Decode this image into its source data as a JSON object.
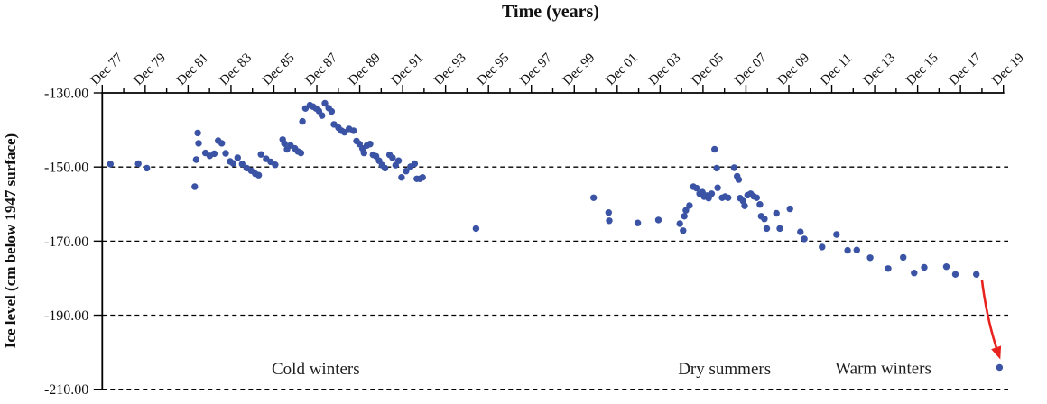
{
  "chart_data": {
    "type": "scatter",
    "title": "Time (years)",
    "xlabel": "Time (years)",
    "ylabel": "Ice level (cm below 1947 surface)",
    "x_unit": "years since Dec 1977",
    "xlim": [
      0,
      42
    ],
    "ylim": [
      -210,
      -130
    ],
    "grid": "horizontal dashed lines at -150, -170, -190, -210",
    "legend": "none",
    "x_axis": {
      "position": "top",
      "tick_labels": [
        "Dec 77",
        "Dec 79",
        "Dec 81",
        "Dec 83",
        "Dec 85",
        "Dec 87",
        "Dec 89",
        "Dec 91",
        "Dec 93",
        "Dec 95",
        "Dec 97",
        "Dec 99",
        "Dec 01",
        "Dec 03",
        "Dec 05",
        "Dec 07",
        "Dec 09",
        "Dec 11",
        "Dec 13",
        "Dec 15",
        "Dec 17",
        "Dec 19"
      ],
      "major_tick_years": [
        0,
        2,
        4,
        6,
        8,
        10,
        12,
        14,
        16,
        18,
        20,
        22,
        24,
        26,
        28,
        30,
        32,
        34,
        36,
        38,
        40,
        42
      ],
      "minor_tick_step": 1,
      "label_rotation_deg": -45
    },
    "y_axis": {
      "tick_labels": [
        "-130.00",
        "-150.00",
        "-170.00",
        "-190.00",
        "-210.00"
      ],
      "tick_values": [
        -130,
        -150,
        -170,
        -190,
        -210
      ]
    },
    "series": [
      {
        "name": "ice-level",
        "color": "#3a53a4",
        "marker": "circle",
        "points": [
          [
            0.38,
            -149.2
          ],
          [
            1.68,
            -149.1
          ],
          [
            2.08,
            -150.3
          ],
          [
            4.31,
            -155.3
          ],
          [
            4.38,
            -148.0
          ],
          [
            4.45,
            -140.8
          ],
          [
            4.49,
            -143.6
          ],
          [
            4.81,
            -146.2
          ],
          [
            5.01,
            -147.0
          ],
          [
            5.22,
            -146.4
          ],
          [
            5.4,
            -142.9
          ],
          [
            5.57,
            -143.6
          ],
          [
            5.75,
            -146.3
          ],
          [
            5.96,
            -148.5
          ],
          [
            6.1,
            -149.0
          ],
          [
            6.31,
            -147.5
          ],
          [
            6.52,
            -149.2
          ],
          [
            6.73,
            -150.3
          ],
          [
            6.94,
            -151.0
          ],
          [
            7.13,
            -151.8
          ],
          [
            7.29,
            -152.2
          ],
          [
            7.4,
            -146.6
          ],
          [
            7.64,
            -147.8
          ],
          [
            7.85,
            -148.6
          ],
          [
            8.06,
            -149.4
          ],
          [
            8.41,
            -142.6
          ],
          [
            8.49,
            -143.7
          ],
          [
            8.61,
            -145.2
          ],
          [
            8.77,
            -144.2
          ],
          [
            8.98,
            -145.0
          ],
          [
            9.12,
            -145.8
          ],
          [
            9.26,
            -146.2
          ],
          [
            9.33,
            -137.7
          ],
          [
            9.47,
            -134.2
          ],
          [
            9.68,
            -133.3
          ],
          [
            9.82,
            -133.7
          ],
          [
            9.96,
            -134.2
          ],
          [
            10.1,
            -134.9
          ],
          [
            10.24,
            -136.1
          ],
          [
            10.38,
            -132.8
          ],
          [
            10.55,
            -134.1
          ],
          [
            10.69,
            -135.0
          ],
          [
            10.8,
            -138.5
          ],
          [
            11.01,
            -139.4
          ],
          [
            11.15,
            -140.2
          ],
          [
            11.29,
            -140.6
          ],
          [
            11.5,
            -139.7
          ],
          [
            11.71,
            -140.2
          ],
          [
            11.85,
            -143.0
          ],
          [
            11.99,
            -143.8
          ],
          [
            12.13,
            -145.0
          ],
          [
            12.2,
            -146.2
          ],
          [
            12.34,
            -144.2
          ],
          [
            12.48,
            -143.8
          ],
          [
            12.62,
            -146.7
          ],
          [
            12.76,
            -147.1
          ],
          [
            12.9,
            -148.3
          ],
          [
            13.04,
            -149.5
          ],
          [
            13.18,
            -150.3
          ],
          [
            13.39,
            -146.7
          ],
          [
            13.53,
            -147.5
          ],
          [
            13.67,
            -149.5
          ],
          [
            13.81,
            -148.3
          ],
          [
            13.95,
            -152.8
          ],
          [
            14.16,
            -151.1
          ],
          [
            14.37,
            -149.9
          ],
          [
            14.56,
            -149.1
          ],
          [
            14.66,
            -153.2
          ],
          [
            14.8,
            -153.2
          ],
          [
            14.93,
            -152.8
          ],
          [
            17.42,
            -166.6
          ],
          [
            22.9,
            -158.3
          ],
          [
            23.6,
            -162.3
          ],
          [
            23.63,
            -164.5
          ],
          [
            24.96,
            -165.1
          ],
          [
            25.92,
            -164.3
          ],
          [
            26.92,
            -165.3
          ],
          [
            27.07,
            -167.2
          ],
          [
            27.13,
            -163.3
          ],
          [
            27.2,
            -161.7
          ],
          [
            27.37,
            -160.4
          ],
          [
            27.55,
            -155.3
          ],
          [
            27.7,
            -155.7
          ],
          [
            27.84,
            -157.2
          ],
          [
            27.97,
            -156.8
          ],
          [
            28.05,
            -158.0
          ],
          [
            28.19,
            -157.7
          ],
          [
            28.26,
            -158.4
          ],
          [
            28.4,
            -157.2
          ],
          [
            28.54,
            -145.2
          ],
          [
            28.64,
            -150.3
          ],
          [
            28.68,
            -155.6
          ],
          [
            28.89,
            -158.3
          ],
          [
            29.03,
            -158.0
          ],
          [
            29.17,
            -158.3
          ],
          [
            29.45,
            -150.2
          ],
          [
            29.59,
            -152.5
          ],
          [
            29.66,
            -153.4
          ],
          [
            29.73,
            -158.4
          ],
          [
            29.87,
            -159.2
          ],
          [
            29.94,
            -160.5
          ],
          [
            30.08,
            -157.6
          ],
          [
            30.22,
            -157.2
          ],
          [
            30.36,
            -157.9
          ],
          [
            30.5,
            -158.3
          ],
          [
            30.65,
            -160.1
          ],
          [
            30.71,
            -163.3
          ],
          [
            30.86,
            -164.0
          ],
          [
            30.97,
            -166.6
          ],
          [
            31.42,
            -162.5
          ],
          [
            31.58,
            -166.6
          ],
          [
            32.05,
            -161.3
          ],
          [
            32.54,
            -167.5
          ],
          [
            32.72,
            -169.4
          ],
          [
            33.55,
            -171.6
          ],
          [
            34.22,
            -168.2
          ],
          [
            34.74,
            -172.5
          ],
          [
            35.17,
            -172.4
          ],
          [
            35.79,
            -174.5
          ],
          [
            36.63,
            -177.4
          ],
          [
            37.33,
            -174.4
          ],
          [
            37.84,
            -178.6
          ],
          [
            38.31,
            -177.1
          ],
          [
            39.34,
            -176.9
          ],
          [
            39.76,
            -179.0
          ],
          [
            40.74,
            -179.0
          ],
          [
            41.82,
            -204.1
          ]
        ]
      }
    ],
    "annotations": [
      {
        "text": "Cold winters",
        "x": 9.95,
        "y": -204.5
      },
      {
        "text": "Dry summers",
        "x": 29.0,
        "y": -204.5
      },
      {
        "text": "Warm winters",
        "x": 36.4,
        "y": -204.3
      }
    ],
    "arrow": {
      "color": "#e8231f",
      "from": [
        41.0,
        -180.5
      ],
      "to": [
        41.8,
        -201.0
      ]
    }
  }
}
